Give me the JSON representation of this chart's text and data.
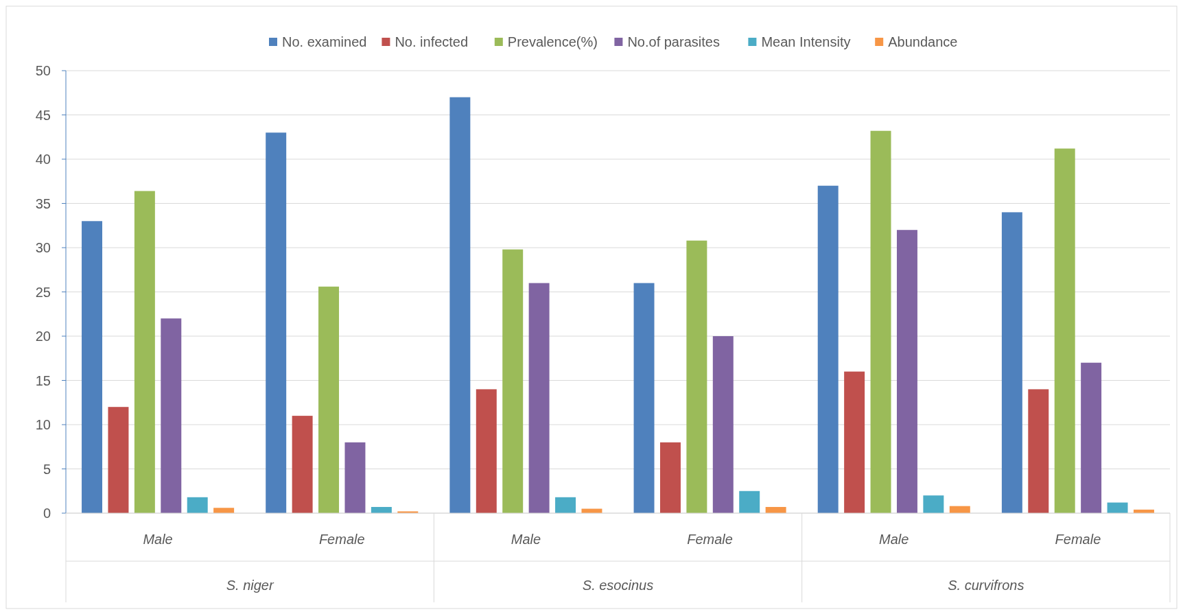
{
  "chart_data": {
    "type": "bar",
    "categories": [
      "Male",
      "Female",
      "Male",
      "Female",
      "Male",
      "Female"
    ],
    "annotations": [
      "S. niger",
      "S. esocinus",
      "S. curvifrons"
    ],
    "series": [
      {
        "name": "No. examined",
        "color": "#4f81bd",
        "values": [
          33,
          43,
          47,
          26,
          37,
          34
        ]
      },
      {
        "name": "No. infected",
        "color": "#c0504d",
        "values": [
          12,
          11,
          14,
          8,
          16,
          14
        ]
      },
      {
        "name": "Prevalence(%)",
        "color": "#9bbb59",
        "values": [
          36.4,
          25.6,
          29.8,
          30.8,
          43.2,
          41.2
        ]
      },
      {
        "name": "No.of parasites",
        "color": "#8064a2",
        "values": [
          22,
          8,
          26,
          20,
          32,
          17
        ]
      },
      {
        "name": "Mean Intensity",
        "color": "#4bacc6",
        "values": [
          1.8,
          0.7,
          1.8,
          2.5,
          2.0,
          1.2
        ]
      },
      {
        "name": "Abundance",
        "color": "#f79646",
        "values": [
          0.6,
          0.2,
          0.5,
          0.7,
          0.8,
          0.4
        ]
      }
    ],
    "ylim": [
      0,
      50
    ],
    "yticks": [
      0,
      5,
      10,
      15,
      20,
      25,
      30,
      35,
      40,
      45,
      50
    ],
    "grid": "y",
    "legend": "top"
  }
}
